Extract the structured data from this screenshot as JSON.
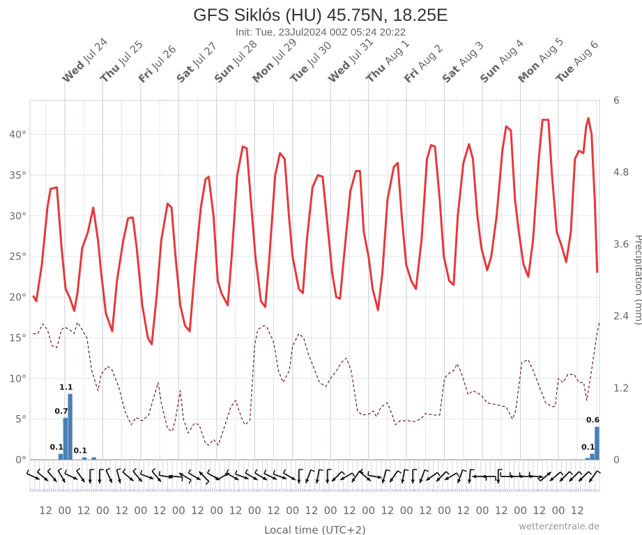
{
  "chart_data": {
    "type": "line",
    "title": "GFS Siklós (HU) 45.75N, 18.25E",
    "subtitle": "Init: Tue, 23Jul2024 00Z 05:24 20:22",
    "xlabel": "Local time (UTC+2)",
    "x_units": "hours since Tue Jul 23 02:00 local",
    "xlim": [
      0,
      360
    ],
    "ylabel_left": "",
    "ylabel_right": "Precipitation (mm)",
    "ylim_left": [
      0,
      45
    ],
    "ylim_right": [
      0,
      6
    ],
    "yticks_left": [
      "0°",
      "5°",
      "10°",
      "15°",
      "20°",
      "25°",
      "30°",
      "35°",
      "40°"
    ],
    "yticks_right": [
      "0",
      "1.2",
      "2.4",
      "3.6",
      "4.8",
      "6"
    ],
    "x_tick_labels": {
      "first_12_hour": 10,
      "first_00_hour": 22,
      "label_12": "12",
      "label_00": "00",
      "count_12": 15,
      "count_00": 14
    },
    "day_labels": [
      {
        "wd": "Wed",
        "d": "Jul 24"
      },
      {
        "wd": "Thu",
        "d": "Jul 25"
      },
      {
        "wd": "Fri",
        "d": "Jul 26"
      },
      {
        "wd": "Sat",
        "d": "Jul 27"
      },
      {
        "wd": "Sun",
        "d": "Jul 28"
      },
      {
        "wd": "Mon",
        "d": "Jul 29"
      },
      {
        "wd": "Tue",
        "d": "Jul 30"
      },
      {
        "wd": "Wed",
        "d": "Jul 31"
      },
      {
        "wd": "Thu",
        "d": "Aug 1"
      },
      {
        "wd": "Fri",
        "d": "Aug 2"
      },
      {
        "wd": "Sat",
        "d": "Aug 3"
      },
      {
        "wd": "Sun",
        "d": "Aug 4"
      },
      {
        "wd": "Mon",
        "d": "Aug 5"
      },
      {
        "wd": "Tue",
        "d": "Aug 6"
      }
    ],
    "first_day_hour": 22,
    "credit": "wetterzentrale.de",
    "colors": {
      "temperature": "#e5383b",
      "dewpoint": "#6e1b1b",
      "precip": "#4a7fb7",
      "grid": "#e3e5ee",
      "axis": "#c9cfe0"
    },
    "series": [
      {
        "name": "Temperature",
        "axis": "left",
        "style": "solid",
        "points": [
          [
            2,
            20.2
          ],
          [
            4,
            19.5
          ],
          [
            7.5,
            24
          ],
          [
            11,
            31
          ],
          [
            13,
            33.3
          ],
          [
            17,
            33.5
          ],
          [
            20,
            26
          ],
          [
            22.5,
            21
          ],
          [
            25,
            20
          ],
          [
            28,
            18.3
          ],
          [
            30,
            20.5
          ],
          [
            33,
            26
          ],
          [
            36.6,
            28
          ],
          [
            40,
            31
          ],
          [
            43,
            27
          ],
          [
            45,
            23
          ],
          [
            48,
            18
          ],
          [
            52,
            15.8
          ],
          [
            55,
            22
          ],
          [
            59,
            27
          ],
          [
            62,
            29.7
          ],
          [
            65,
            29.8
          ],
          [
            67.5,
            26
          ],
          [
            71,
            19
          ],
          [
            74.5,
            15
          ],
          [
            77,
            14.2
          ],
          [
            80,
            20
          ],
          [
            83,
            27
          ],
          [
            87,
            31.5
          ],
          [
            89.5,
            31
          ],
          [
            92,
            25
          ],
          [
            95,
            19
          ],
          [
            98,
            16.5
          ],
          [
            101,
            15.8
          ],
          [
            104.5,
            24
          ],
          [
            108,
            31
          ],
          [
            111,
            34.5
          ],
          [
            113,
            34.8
          ],
          [
            116,
            30
          ],
          [
            118.7,
            22
          ],
          [
            121,
            20.5
          ],
          [
            125,
            19
          ],
          [
            127.5,
            25
          ],
          [
            131,
            35
          ],
          [
            134.5,
            38.5
          ],
          [
            137,
            38.3
          ],
          [
            140,
            31
          ],
          [
            142.5,
            25
          ],
          [
            146,
            19.5
          ],
          [
            148.7,
            18.8
          ],
          [
            151,
            24
          ],
          [
            155,
            35
          ],
          [
            158,
            37.7
          ],
          [
            161,
            37
          ],
          [
            163.7,
            30
          ],
          [
            166,
            25
          ],
          [
            170,
            21
          ],
          [
            172.5,
            20.5
          ],
          [
            175,
            27
          ],
          [
            178.6,
            33.5
          ],
          [
            182,
            35
          ],
          [
            185,
            34.8
          ],
          [
            187.5,
            30
          ],
          [
            191,
            23
          ],
          [
            193.6,
            20
          ],
          [
            196,
            19.8
          ],
          [
            199,
            26
          ],
          [
            202.5,
            33
          ],
          [
            206,
            35.5
          ],
          [
            208.6,
            35.5
          ],
          [
            211,
            28
          ],
          [
            214,
            25
          ],
          [
            216.6,
            21
          ],
          [
            220,
            18.4
          ],
          [
            222.8,
            23
          ],
          [
            226,
            32
          ],
          [
            230,
            36
          ],
          [
            232.5,
            36.5
          ],
          [
            235,
            30
          ],
          [
            237.8,
            24
          ],
          [
            241,
            22
          ],
          [
            244,
            21
          ],
          [
            247.5,
            27
          ],
          [
            251,
            37
          ],
          [
            253.6,
            38.7
          ],
          [
            256,
            38.5
          ],
          [
            259,
            32
          ],
          [
            261.6,
            25
          ],
          [
            265,
            22
          ],
          [
            267.8,
            21.5
          ],
          [
            270.4,
            30
          ],
          [
            274,
            36.5
          ],
          [
            277.5,
            38.8
          ],
          [
            280,
            37
          ],
          [
            282.8,
            30
          ],
          [
            285.4,
            26
          ],
          [
            289,
            23.3
          ],
          [
            291.6,
            25
          ],
          [
            295,
            30
          ],
          [
            298.6,
            38
          ],
          [
            301,
            41
          ],
          [
            304,
            40.5
          ],
          [
            306.6,
            32
          ],
          [
            309,
            28
          ],
          [
            312,
            24
          ],
          [
            315,
            22.5
          ],
          [
            318,
            27
          ],
          [
            321.6,
            37
          ],
          [
            324,
            41.8
          ],
          [
            327.7,
            41.8
          ],
          [
            330,
            35
          ],
          [
            333,
            28
          ],
          [
            335.7,
            26.5
          ],
          [
            339,
            24.3
          ],
          [
            341.9,
            28
          ],
          [
            344.5,
            37
          ],
          [
            347,
            38
          ],
          [
            349.8,
            37.7
          ],
          [
            351.6,
            41
          ],
          [
            353,
            42
          ],
          [
            355,
            40
          ],
          [
            357,
            32
          ],
          [
            358.6,
            23
          ]
        ]
      },
      {
        "name": "Dewpoint",
        "axis": "left",
        "style": "dashed",
        "points": [
          [
            2,
            15.5
          ],
          [
            5,
            15.5
          ],
          [
            8,
            16.7
          ],
          [
            11,
            16
          ],
          [
            14,
            14
          ],
          [
            17,
            13.8
          ],
          [
            20,
            16
          ],
          [
            22,
            16.3
          ],
          [
            25,
            16
          ],
          [
            28,
            15.5
          ],
          [
            30,
            16.9
          ],
          [
            33,
            16
          ],
          [
            36,
            15
          ],
          [
            39,
            11
          ],
          [
            43,
            8.5
          ],
          [
            45,
            10.5
          ],
          [
            49,
            11.5
          ],
          [
            52,
            11
          ],
          [
            56,
            9
          ],
          [
            60,
            6
          ],
          [
            64,
            4.3
          ],
          [
            67,
            5.2
          ],
          [
            71,
            4.8
          ],
          [
            75,
            5.5
          ],
          [
            81,
            9.5
          ],
          [
            83,
            7
          ],
          [
            87,
            3.8
          ],
          [
            90,
            3.5
          ],
          [
            92,
            5
          ],
          [
            95,
            8.5
          ],
          [
            97,
            5
          ],
          [
            100,
            3.3
          ],
          [
            104,
            4.5
          ],
          [
            107,
            4.3
          ],
          [
            111,
            2
          ],
          [
            113,
            1.8
          ],
          [
            116,
            2.5
          ],
          [
            119,
            1.8
          ],
          [
            122,
            3.5
          ],
          [
            127,
            6.5
          ],
          [
            130,
            7.3
          ],
          [
            134,
            5
          ],
          [
            136,
            4.3
          ],
          [
            139,
            4.8
          ],
          [
            142,
            14
          ],
          [
            144,
            16
          ],
          [
            148,
            16.5
          ],
          [
            150,
            16.2
          ],
          [
            154,
            14.5
          ],
          [
            157,
            11
          ],
          [
            160,
            9.5
          ],
          [
            164,
            11
          ],
          [
            166,
            14
          ],
          [
            170,
            15.5
          ],
          [
            173,
            15
          ],
          [
            176,
            13
          ],
          [
            180,
            11
          ],
          [
            183,
            9.5
          ],
          [
            187,
            9
          ],
          [
            190,
            10
          ],
          [
            194,
            11
          ],
          [
            197,
            12
          ],
          [
            200,
            12.5
          ],
          [
            203,
            11
          ],
          [
            207,
            6
          ],
          [
            210,
            5.5
          ],
          [
            214,
            5.6
          ],
          [
            217,
            6
          ],
          [
            219,
            5.3
          ],
          [
            222,
            6.5
          ],
          [
            226,
            7
          ],
          [
            229,
            5.5
          ],
          [
            231,
            4.3
          ],
          [
            234,
            4.8
          ],
          [
            239,
            4.8
          ],
          [
            243,
            4.7
          ],
          [
            247,
            5
          ],
          [
            250,
            5.7
          ],
          [
            255,
            5.5
          ],
          [
            259,
            5.5
          ],
          [
            262,
            10
          ],
          [
            264,
            10.5
          ],
          [
            268,
            11
          ],
          [
            270,
            11.8
          ],
          [
            273,
            10.5
          ],
          [
            277,
            8
          ],
          [
            280,
            8.5
          ],
          [
            285,
            8
          ],
          [
            289,
            7
          ],
          [
            294,
            6.8
          ],
          [
            301,
            6.5
          ],
          [
            305,
            5
          ],
          [
            307,
            6
          ],
          [
            311,
            12
          ],
          [
            315,
            12.3
          ],
          [
            318,
            11
          ],
          [
            322,
            9
          ],
          [
            326,
            7
          ],
          [
            330,
            6.5
          ],
          [
            332,
            6.6
          ],
          [
            334,
            10
          ],
          [
            337,
            9.5
          ],
          [
            340,
            10.5
          ],
          [
            344,
            10.5
          ],
          [
            347,
            9.5
          ],
          [
            350,
            9.5
          ],
          [
            352,
            7.3
          ],
          [
            355,
            11
          ],
          [
            358,
            15
          ],
          [
            360,
            17
          ]
        ]
      }
    ],
    "precipitation": {
      "bin_hours": 3,
      "bars": [
        {
          "start": 18,
          "value": 0.1,
          "label": "0.1"
        },
        {
          "start": 21,
          "value": 0.7,
          "label": "0.7"
        },
        {
          "start": 24,
          "value": 1.1,
          "label": "1.1"
        },
        {
          "start": 33,
          "value": 0.04,
          "label": "0.1"
        },
        {
          "start": 39,
          "value": 0.04,
          "label": ""
        },
        {
          "start": 351,
          "value": 0.03,
          "label": ""
        },
        {
          "start": 354,
          "value": 0.1,
          "label": "0.1"
        },
        {
          "start": 357,
          "value": 0.55,
          "label": "0.6"
        }
      ]
    },
    "wind": {
      "interval_hours": 6,
      "direction_to_deg": [
        115,
        130,
        140,
        150,
        115,
        145,
        180,
        180,
        155,
        165,
        130,
        140,
        110,
        140,
        100,
        275,
        300,
        120,
        315,
        120,
        60,
        120,
        110,
        120,
        120,
        115,
        110,
        120,
        180,
        200,
        190,
        180,
        225,
        240,
        215,
        130,
        100,
        195,
        215,
        190,
        180,
        200,
        235,
        225,
        240,
        200,
        185,
        270,
        270,
        180,
        90,
        90,
        90,
        95,
        50,
        230,
        225,
        225,
        225,
        215
      ]
    }
  }
}
